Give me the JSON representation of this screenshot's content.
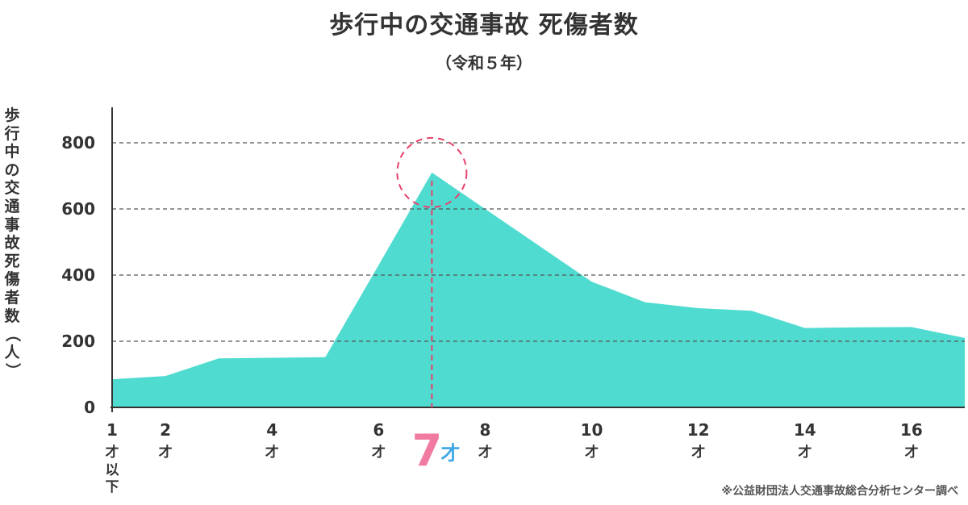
{
  "chart_data": {
    "type": "area",
    "title": "歩行中の交通事故 死傷者数",
    "subtitle": "（令和５年）",
    "ylabel": "歩行中の交通事故死傷者数（人）",
    "x": [
      1,
      2,
      3,
      4,
      5,
      6,
      7,
      8,
      9,
      10,
      11,
      12,
      13,
      14,
      15,
      16,
      17
    ],
    "values": [
      85,
      95,
      148,
      150,
      152,
      430,
      710,
      600,
      490,
      380,
      318,
      300,
      292,
      240,
      242,
      243,
      210
    ],
    "xlim": [
      1,
      17
    ],
    "ylim": [
      0,
      900
    ],
    "yticks": [
      "0",
      "200",
      "400",
      "600",
      "800"
    ],
    "ytick_values": [
      0,
      200,
      400,
      600,
      800
    ],
    "xticks": [
      {
        "x": 1,
        "num": "1",
        "unit": "才",
        "extra": "以下"
      },
      {
        "x": 2,
        "num": "2",
        "unit": "才"
      },
      {
        "x": 4,
        "num": "4",
        "unit": "才"
      },
      {
        "x": 6,
        "num": "6",
        "unit": "才"
      },
      {
        "x": 8,
        "num": "8",
        "unit": "才"
      },
      {
        "x": 10,
        "num": "10",
        "unit": "才"
      },
      {
        "x": 12,
        "num": "12",
        "unit": "才"
      },
      {
        "x": 14,
        "num": "14",
        "unit": "才"
      },
      {
        "x": 16,
        "num": "16",
        "unit": "才"
      }
    ],
    "highlight": {
      "x": 7,
      "num": "7",
      "unit": "才"
    },
    "grid": "dashed horizontal",
    "colors": {
      "area": "#4fdbd0",
      "highlight_line": "#e8426a",
      "highlight_number": "#f07aa0",
      "highlight_unit": "#3fa7e6",
      "axis": "#333333",
      "grid": "#555555"
    }
  },
  "source_note": "※公益財団法人交通事故総合分析センター調べ"
}
